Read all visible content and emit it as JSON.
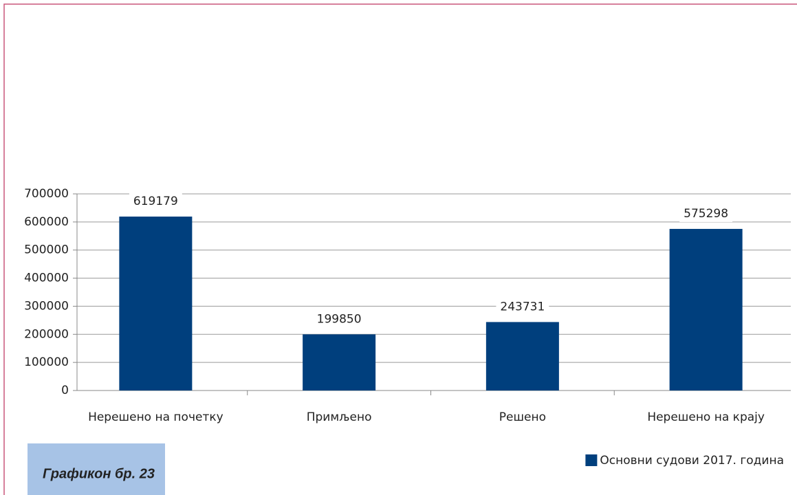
{
  "chart_data": {
    "type": "bar",
    "categories": [
      "Нерешено на почетку",
      "Примљено",
      "Решено",
      "Нерешено на крају"
    ],
    "series": [
      {
        "name": "Основни судови 2017. година",
        "color": "#003f7d",
        "values": [
          619179,
          199850,
          243731,
          575298
        ]
      }
    ],
    "ylim": [
      0,
      700000
    ],
    "yticks": [
      0,
      100000,
      200000,
      300000,
      400000,
      500000,
      600000,
      700000
    ],
    "grid": true,
    "legend": "bottom-right",
    "caption": "Графикон бр. 23"
  }
}
